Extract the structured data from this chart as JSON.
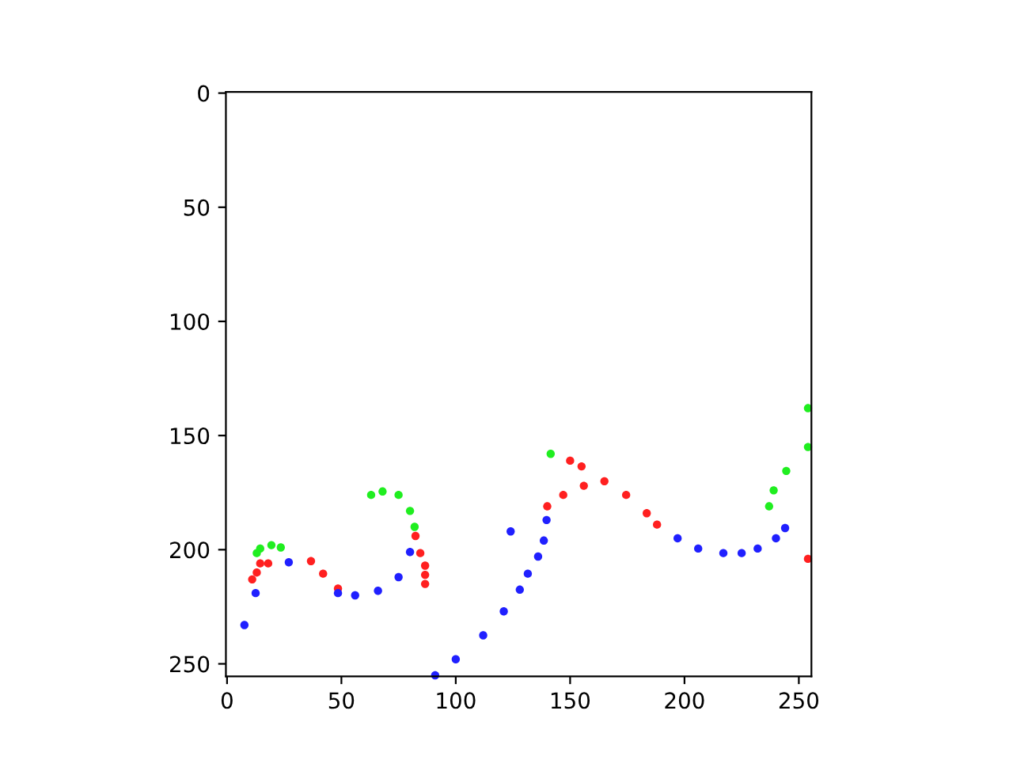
{
  "chart_data": {
    "type": "scatter",
    "xlim": [
      -0.5,
      255.5
    ],
    "ylim": [
      255.5,
      -0.5
    ],
    "xticks": [
      0,
      50,
      100,
      150,
      200,
      250
    ],
    "yticks": [
      0,
      50,
      100,
      150,
      200,
      250
    ],
    "grid": false,
    "legend": false,
    "marker": "circle",
    "series": [
      {
        "color": "#ff2020",
        "x": [
          11,
          13,
          14.5,
          18,
          36.7,
          42,
          48.5,
          82.4,
          84.5,
          86.6,
          86.6,
          86.6,
          140,
          147,
          156,
          150,
          155,
          165,
          174.5,
          183.5,
          188,
          254
        ],
        "values": [
          213,
          210,
          206,
          206,
          205,
          210.5,
          217,
          194,
          201.5,
          207,
          211,
          215,
          181,
          176,
          172,
          161,
          163.5,
          170,
          176,
          184,
          189,
          204
        ]
      },
      {
        "color": "#20ee20",
        "x": [
          13,
          14.5,
          19.4,
          23.5,
          63,
          68,
          75,
          80,
          82,
          141.5,
          237,
          239,
          244.5,
          254,
          254
        ],
        "values": [
          201.5,
          199.5,
          198,
          199,
          176,
          174.5,
          176,
          183,
          190,
          158,
          181,
          174,
          165.5,
          155,
          138
        ]
      },
      {
        "color": "#2020ff",
        "x": [
          7.6,
          12.5,
          27,
          48.5,
          56,
          66,
          75,
          80,
          91,
          100,
          112,
          121,
          128,
          131.5,
          136,
          138.5,
          139.7,
          124,
          197,
          206,
          217,
          225,
          232,
          240,
          244
        ],
        "values": [
          233,
          219,
          205.5,
          219,
          220,
          218,
          212,
          201,
          255,
          248,
          237.5,
          227,
          217.5,
          210.5,
          203,
          196,
          187,
          192,
          195,
          199.5,
          201.5,
          201.5,
          199.5,
          195,
          190.5
        ]
      }
    ]
  }
}
